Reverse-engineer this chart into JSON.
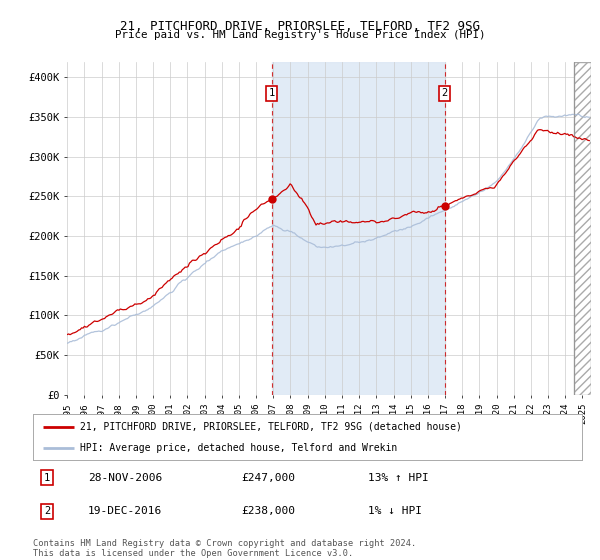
{
  "title1": "21, PITCHFORD DRIVE, PRIORSLEE, TELFORD, TF2 9SG",
  "title2": "Price paid vs. HM Land Registry's House Price Index (HPI)",
  "hpi_color": "#aabdd8",
  "price_color": "#cc0000",
  "plot_bg": "#ffffff",
  "grid_color": "#cccccc",
  "shade_color": "#dce8f5",
  "ylim": [
    0,
    420000
  ],
  "yticks": [
    0,
    50000,
    100000,
    150000,
    200000,
    250000,
    300000,
    350000,
    400000
  ],
  "ytick_labels": [
    "£0",
    "£50K",
    "£100K",
    "£150K",
    "£200K",
    "£250K",
    "£300K",
    "£350K",
    "£400K"
  ],
  "sale1_date_num": 2006.91,
  "sale1_price": 247000,
  "sale2_date_num": 2016.97,
  "sale2_price": 238000,
  "legend_label_red": "21, PITCHFORD DRIVE, PRIORSLEE, TELFORD, TF2 9SG (detached house)",
  "legend_label_blue": "HPI: Average price, detached house, Telford and Wrekin",
  "ann1_date": "28-NOV-2006",
  "ann1_price": "£247,000",
  "ann1_hpi": "13% ↑ HPI",
  "ann2_date": "19-DEC-2016",
  "ann2_price": "£238,000",
  "ann2_hpi": "1% ↓ HPI",
  "footnote": "Contains HM Land Registry data © Crown copyright and database right 2024.\nThis data is licensed under the Open Government Licence v3.0.",
  "xstart": 1995.0,
  "xend": 2025.5,
  "hatch_start": 2024.5,
  "xtick_years": [
    1995,
    1996,
    1997,
    1998,
    1999,
    2000,
    2001,
    2002,
    2003,
    2004,
    2005,
    2006,
    2007,
    2008,
    2009,
    2010,
    2011,
    2012,
    2013,
    2014,
    2015,
    2016,
    2017,
    2018,
    2019,
    2020,
    2021,
    2022,
    2023,
    2024,
    2025
  ]
}
